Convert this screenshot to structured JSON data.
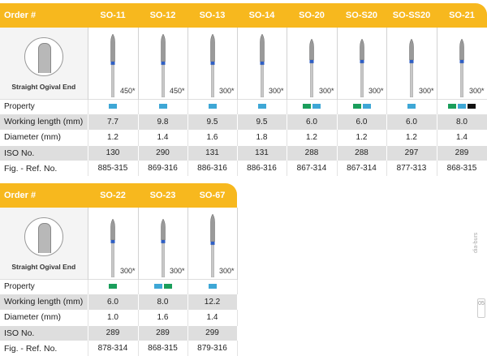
{
  "row_labels": {
    "order": "Order #",
    "property": "Property",
    "working_length": "Working length (mm)",
    "diameter": "Diameter (mm)",
    "iso": "ISO No.",
    "fig_ref": "Fig. - Ref. No."
  },
  "shape_label": "Straight Ogival End",
  "property_colors": {
    "blue": "#3ea7d6",
    "green": "#1a9e5b",
    "black": "#111111"
  },
  "header_color": "#f7b81e",
  "side_text": "dia-burs",
  "page_number": "05",
  "table1": {
    "columns": [
      {
        "order": "SO-11",
        "angle": "450*",
        "property": [
          "blue"
        ],
        "working_length": "7.7",
        "diameter": "1.2",
        "iso": "130",
        "fig_ref": "885-315"
      },
      {
        "order": "SO-12",
        "angle": "450*",
        "property": [
          "blue"
        ],
        "working_length": "9.8",
        "diameter": "1.4",
        "iso": "290",
        "fig_ref": "869-316"
      },
      {
        "order": "SO-13",
        "angle": "300*",
        "property": [
          "blue"
        ],
        "working_length": "9.5",
        "diameter": "1.6",
        "iso": "131",
        "fig_ref": "886-316"
      },
      {
        "order": "SO-14",
        "angle": "300*",
        "property": [
          "blue"
        ],
        "working_length": "9.5",
        "diameter": "1.8",
        "iso": "131",
        "fig_ref": "886-316"
      },
      {
        "order": "SO-20",
        "angle": "300*",
        "property": [
          "green",
          "blue"
        ],
        "working_length": "6.0",
        "diameter": "1.2",
        "iso": "288",
        "fig_ref": "867-314"
      },
      {
        "order": "SO-S20",
        "angle": "300*",
        "property": [
          "green",
          "blue"
        ],
        "working_length": "6.0",
        "diameter": "1.2",
        "iso": "288",
        "fig_ref": "867-314"
      },
      {
        "order": "SO-SS20",
        "angle": "300*",
        "property": [
          "blue"
        ],
        "working_length": "6.0",
        "diameter": "1.2",
        "iso": "297",
        "fig_ref": "877-313"
      },
      {
        "order": "SO-21",
        "angle": "300*",
        "property": [
          "green",
          "blue",
          "black"
        ],
        "working_length": "8.0",
        "diameter": "1.4",
        "iso": "289",
        "fig_ref": "868-315"
      }
    ]
  },
  "table2": {
    "columns": [
      {
        "order": "SO-22",
        "angle": "300*",
        "property": [
          "green"
        ],
        "working_length": "6.0",
        "diameter": "1.0",
        "iso": "289",
        "fig_ref": "878-314"
      },
      {
        "order": "SO-23",
        "angle": "300*",
        "property": [
          "blue",
          "green"
        ],
        "working_length": "8.0",
        "diameter": "1.6",
        "iso": "289",
        "fig_ref": "868-315"
      },
      {
        "order": "SO-67",
        "angle": "300*",
        "property": [
          "blue"
        ],
        "working_length": "12.2",
        "diameter": "1.4",
        "iso": "299",
        "fig_ref": "879-316"
      }
    ]
  }
}
